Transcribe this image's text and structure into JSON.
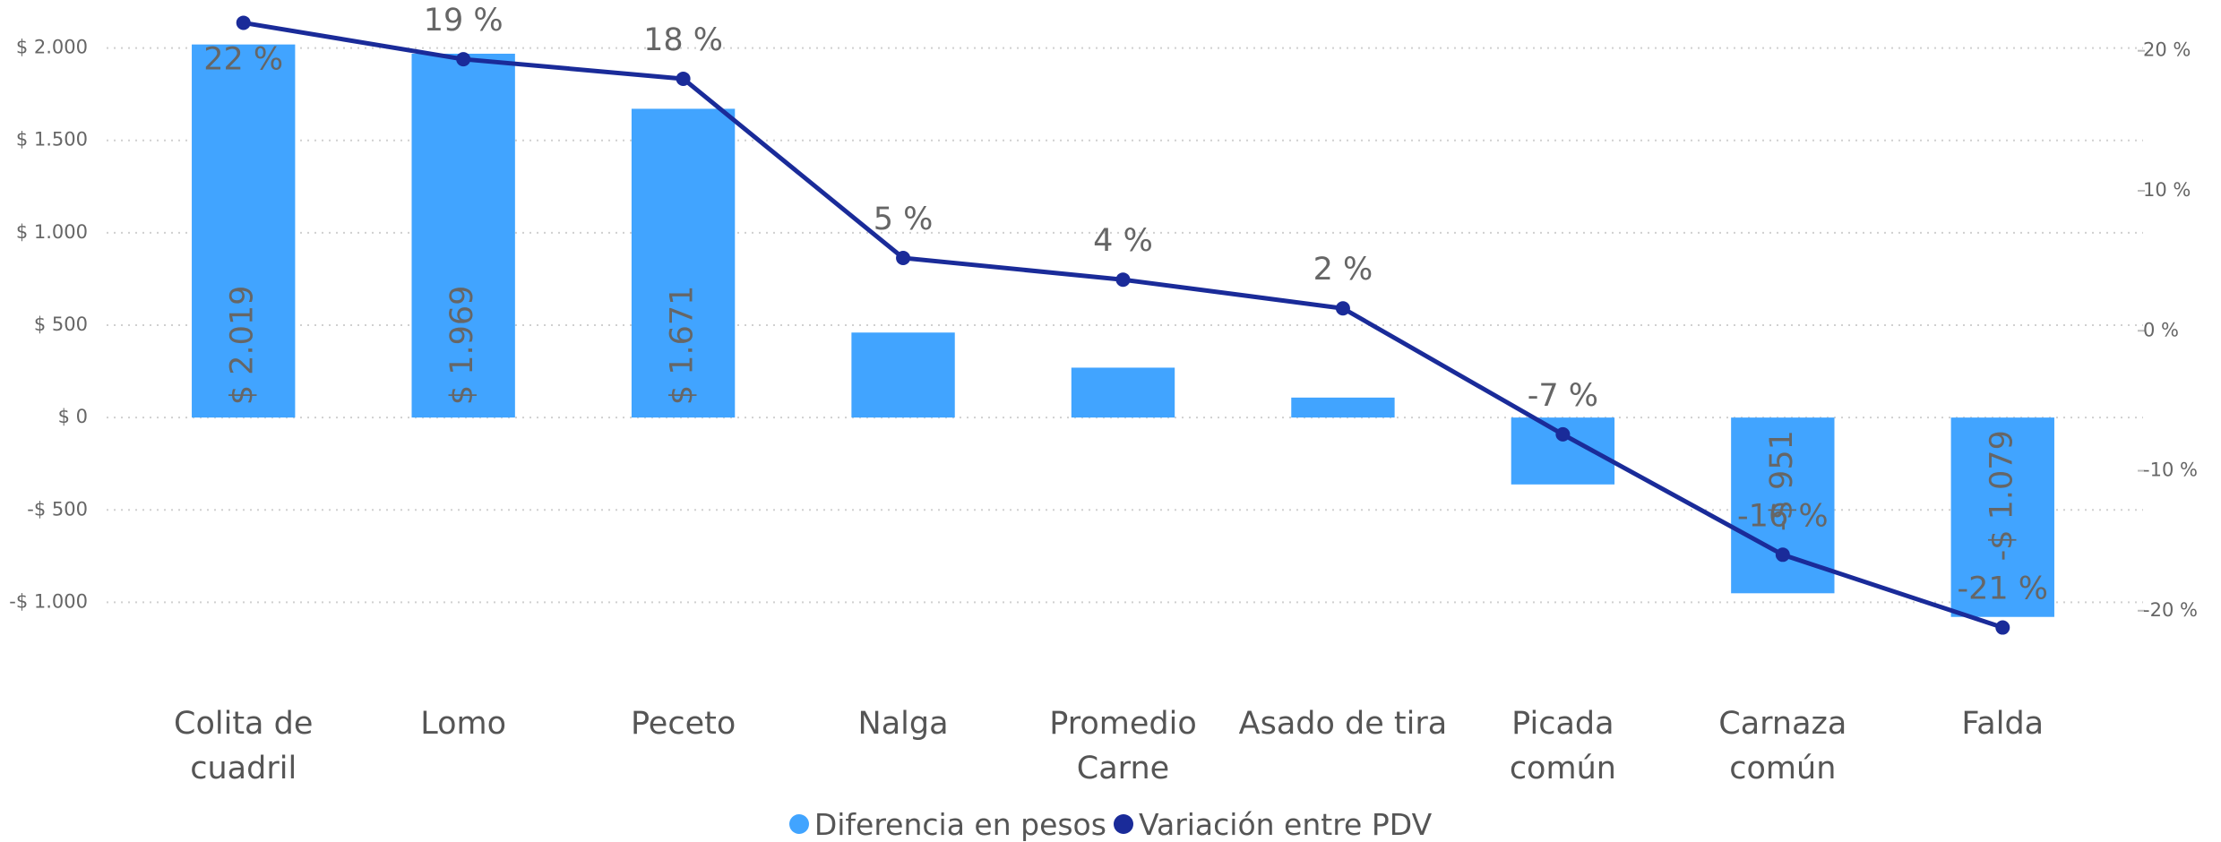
{
  "chart_data": {
    "type": "bar_line",
    "categories": [
      "Colita de\ncuadril",
      "Lomo",
      "Peceto",
      "Nalga",
      "Promedio\nCarne",
      "Asado de tira",
      "Picada\ncomún",
      "Carnaza\ncomún",
      "Falda"
    ],
    "series": [
      {
        "name": "Diferencia en pesos",
        "type": "bar",
        "color": "#41a4ff",
        "values": [
          2019,
          1969,
          1671,
          460,
          270,
          108,
          -362,
          -951,
          -1079
        ],
        "value_labels": [
          "$ 2.019",
          "$ 1.969",
          "$ 1.671",
          null,
          null,
          null,
          null,
          "-$ 951",
          "-$ 1.079"
        ]
      },
      {
        "name": "Variación entre PDV",
        "type": "line",
        "axis": "y2",
        "color": "#1a2b99",
        "values": [
          22.0,
          19.4,
          18.0,
          5.2,
          3.65,
          1.6,
          -7.4,
          -16.0,
          -21.2
        ],
        "value_labels": [
          "22 %",
          "19 %",
          "18 %",
          "5 %",
          "4 %",
          "2 %",
          "-7 %",
          "-16 %",
          "-21 %"
        ]
      }
    ],
    "ylim": [
      -1250,
      2250
    ],
    "yticks": [
      {
        "value": -1000,
        "label": "-$ 1.000"
      },
      {
        "value": -500,
        "label": "-$ 500"
      },
      {
        "value": 0,
        "label": "$ 0"
      },
      {
        "value": 500,
        "label": "$ 500"
      },
      {
        "value": 1000,
        "label": "$ 1.000"
      },
      {
        "value": 1500,
        "label": "$ 1.500"
      },
      {
        "value": 2000,
        "label": "$ 2.000"
      }
    ],
    "y2lim": [
      -22.7,
      23.5
    ],
    "y2ticks": [
      {
        "value": -20,
        "label": "-20 %"
      },
      {
        "value": -10,
        "label": "-10 %"
      },
      {
        "value": 0,
        "label": "0 %"
      },
      {
        "value": 10,
        "label": "10 %"
      },
      {
        "value": 20,
        "label": "20 %"
      }
    ],
    "grid": true,
    "legend": "bottom"
  }
}
